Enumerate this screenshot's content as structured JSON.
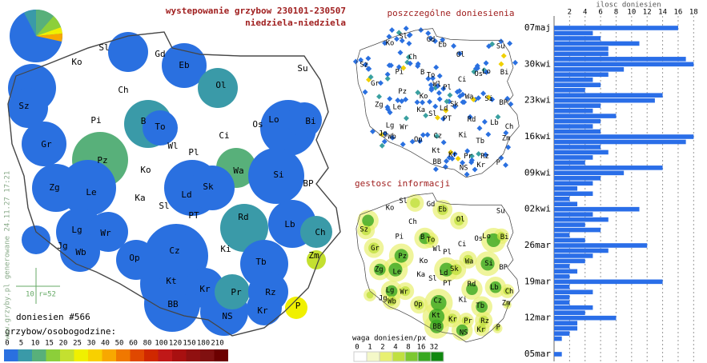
{
  "header": {
    "title": "wystepowanie grzybow 230101-230507",
    "subtitle": "niedziela-niedziela"
  },
  "region_labels": [
    "Sl",
    "Gd",
    "Ko",
    "Eb",
    "Su",
    "Ol",
    "Ch",
    "Sz",
    "Pi",
    "B",
    "To",
    "Os",
    "Lo",
    "Bi",
    "Ci",
    "Wl",
    "Pl",
    "Gr",
    "Pz",
    "Ko",
    "Wa",
    "Si",
    "Zg",
    "Le",
    "Ka",
    "Ld",
    "Sk",
    "BP",
    "Sl",
    "PT",
    "Rd",
    "Lb",
    "Ch",
    "Lg",
    "Wr",
    "Ki",
    "Zm",
    "Jg",
    "Wb",
    "Op",
    "Cz",
    "Tb",
    "Kt",
    "Kr",
    "Pr",
    "Rz",
    "BB",
    "Kr",
    "P",
    "NS"
  ],
  "main_map": {
    "reports": "doniesien #566",
    "scale": "10 r=52",
    "footer": "www.grzyby.pl generowane 24.11.27 17:21"
  },
  "legend": {
    "title": "grzybow/osobogodzine:",
    "ticks": [
      0,
      5,
      10,
      15,
      20,
      25,
      30,
      40,
      50,
      60,
      80,
      100,
      120,
      150,
      180,
      210
    ],
    "colors": [
      "#2a70e0",
      "#3a9aa8",
      "#58b07a",
      "#8ccf3a",
      "#c4e030",
      "#f0f000",
      "#f8d000",
      "#f8a800",
      "#f07800",
      "#e04800",
      "#d02800",
      "#c01818",
      "#a81010",
      "#901010",
      "#801010",
      "#6c0000"
    ]
  },
  "points_map": {
    "title": "poszczególne doniesienia"
  },
  "density_map": {
    "title": "gestosc informacji",
    "legend_title": "waga doniesien/px",
    "legend_ticks": [
      0,
      1,
      2,
      4,
      8,
      16,
      32
    ],
    "legend_colors": [
      "#ffffff",
      "#f4f8c8",
      "#e8f070",
      "#c0e040",
      "#7cc830",
      "#38a820",
      "#108810"
    ]
  },
  "chart_data": {
    "type": "bar",
    "orientation": "horizontal",
    "x_label": "ilosc doniesien",
    "categories": [
      "07maj",
      null,
      null,
      null,
      null,
      null,
      null,
      "30kwi",
      null,
      null,
      null,
      null,
      null,
      null,
      "23kwi",
      null,
      null,
      null,
      null,
      null,
      null,
      "16kwi",
      null,
      null,
      null,
      null,
      null,
      null,
      "09kwi",
      null,
      null,
      null,
      null,
      null,
      null,
      "02kwi",
      null,
      null,
      null,
      null,
      null,
      null,
      "26mar",
      null,
      null,
      null,
      null,
      null,
      null,
      "19mar",
      null,
      null,
      null,
      null,
      null,
      null,
      "12mar",
      null,
      null,
      null,
      null,
      null,
      null,
      "05mar"
    ],
    "values": [
      16,
      5,
      6,
      11,
      7,
      7,
      17,
      18,
      9,
      7,
      5,
      6,
      4,
      14,
      13,
      6,
      5,
      8,
      6,
      5,
      6,
      18,
      17,
      6,
      7,
      5,
      4,
      14,
      9,
      6,
      5,
      3,
      5,
      2,
      3,
      11,
      5,
      7,
      4,
      6,
      2,
      4,
      12,
      7,
      5,
      4,
      2,
      3,
      2,
      14,
      2,
      5,
      2,
      2,
      5,
      4,
      8,
      3,
      3,
      2,
      1,
      0,
      0,
      1
    ],
    "color": "#2a6ee8",
    "xlim": [
      0,
      19
    ],
    "xticks": [
      2,
      4,
      6,
      8,
      10,
      12,
      14,
      16,
      18
    ],
    "grid": true
  }
}
